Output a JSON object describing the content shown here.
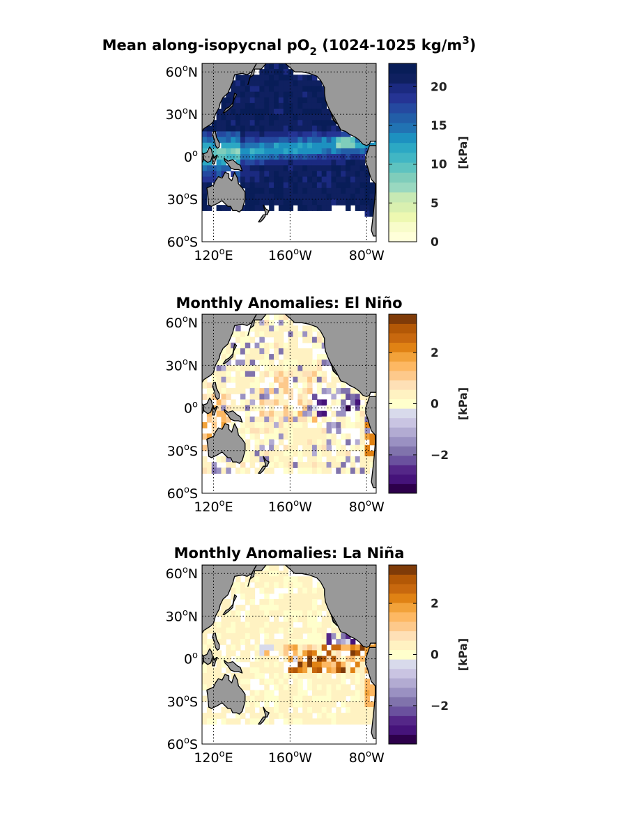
{
  "chart_data": [
    {
      "type": "heatmap",
      "title": "Mean along-isopycnal pO",
      "title_sub": "2",
      "title_rest": " (1024-1025 kg/m",
      "title_sup": "3",
      "title_end": ")",
      "x_ticks": [
        {
          "label": "120",
          "hemi": "E",
          "lon": 120
        },
        {
          "label": "160",
          "hemi": "W",
          "lon": 200
        },
        {
          "label": "80",
          "hemi": "W",
          "lon": 280
        }
      ],
      "y_ticks": [
        {
          "label": "60",
          "hemi": "N",
          "lat": 60
        },
        {
          "label": "30",
          "hemi": "N",
          "lat": 30
        },
        {
          "label": "0",
          "hemi": "",
          "lat": 0
        },
        {
          "label": "30",
          "hemi": "S",
          "lat": -30
        },
        {
          "label": "60",
          "hemi": "S",
          "lat": -60
        }
      ],
      "lon_range": [
        108,
        290
      ],
      "lat_range": [
        -60,
        66
      ],
      "colorbar": {
        "label": "[kPa]",
        "range": [
          0,
          23
        ],
        "ticks": [
          "0",
          "5",
          "10",
          "15",
          "20"
        ],
        "tick_values": [
          0,
          5,
          10,
          15,
          20
        ],
        "colors": [
          "#ffffd9",
          "#f8fcca",
          "#edf8b1",
          "#d9f0b0",
          "#c7e9b4",
          "#99d8c0",
          "#7fcdbb",
          "#5ec3c0",
          "#41b6c4",
          "#2ca8c4",
          "#1d91c0",
          "#2173b3",
          "#225ea8",
          "#2549a0",
          "#253494",
          "#1b2a80",
          "#0f2060",
          "#081d58"
        ]
      },
      "grid": true,
      "field": "mean"
    },
    {
      "type": "heatmap",
      "title": "Monthly Anomalies: El Niño",
      "x_ticks": [
        {
          "label": "120",
          "hemi": "E",
          "lon": 120
        },
        {
          "label": "160",
          "hemi": "W",
          "lon": 200
        },
        {
          "label": "80",
          "hemi": "W",
          "lon": 280
        }
      ],
      "y_ticks": [
        {
          "label": "60",
          "hemi": "N",
          "lat": 60
        },
        {
          "label": "30",
          "hemi": "N",
          "lat": 30
        },
        {
          "label": "0",
          "hemi": "",
          "lat": 0
        },
        {
          "label": "30",
          "hemi": "S",
          "lat": -30
        },
        {
          "label": "60",
          "hemi": "S",
          "lat": -60
        }
      ],
      "lon_range": [
        108,
        290
      ],
      "lat_range": [
        -60,
        66
      ],
      "colorbar": {
        "label": "[kPa]",
        "range": [
          -3.5,
          3.5
        ],
        "ticks": [
          "2",
          "0",
          "−2"
        ],
        "tick_values": [
          2,
          0,
          -2
        ],
        "colors": [
          "#2d004b",
          "#45137a",
          "#542788",
          "#6a519e",
          "#8073ac",
          "#9a91c2",
          "#b2abd2",
          "#c9c4e2",
          "#d8daeb",
          "#ffffcc",
          "#fff2c2",
          "#fee0b6",
          "#fdc98b",
          "#fdb863",
          "#f2a23a",
          "#e08214",
          "#c8680e",
          "#b35806",
          "#7f3b08"
        ]
      },
      "grid": true,
      "field": "elnino"
    },
    {
      "type": "heatmap",
      "title": "Monthly Anomalies: La Niña",
      "x_ticks": [
        {
          "label": "120",
          "hemi": "E",
          "lon": 120
        },
        {
          "label": "160",
          "hemi": "W",
          "lon": 200
        },
        {
          "label": "80",
          "hemi": "W",
          "lon": 280
        }
      ],
      "y_ticks": [
        {
          "label": "60",
          "hemi": "N",
          "lat": 60
        },
        {
          "label": "30",
          "hemi": "N",
          "lat": 30
        },
        {
          "label": "0",
          "hemi": "",
          "lat": 0
        },
        {
          "label": "30",
          "hemi": "S",
          "lat": -30
        },
        {
          "label": "60",
          "hemi": "S",
          "lat": -60
        }
      ],
      "lon_range": [
        108,
        290
      ],
      "lat_range": [
        -60,
        66
      ],
      "colorbar": {
        "label": "[kPa]",
        "range": [
          -3.5,
          3.5
        ],
        "ticks": [
          "2",
          "0",
          "−2"
        ],
        "tick_values": [
          2,
          0,
          -2
        ],
        "colors": [
          "#2d004b",
          "#45137a",
          "#542788",
          "#6a519e",
          "#8073ac",
          "#9a91c2",
          "#b2abd2",
          "#c9c4e2",
          "#d8daeb",
          "#ffffcc",
          "#fff2c2",
          "#fee0b6",
          "#fdc98b",
          "#fdb863",
          "#f2a23a",
          "#e08214",
          "#c8680e",
          "#b35806",
          "#7f3b08"
        ]
      },
      "grid": true,
      "field": "lanina"
    }
  ],
  "colors": {
    "land": "#999999",
    "coast": "#000000",
    "grid": "#000000"
  }
}
